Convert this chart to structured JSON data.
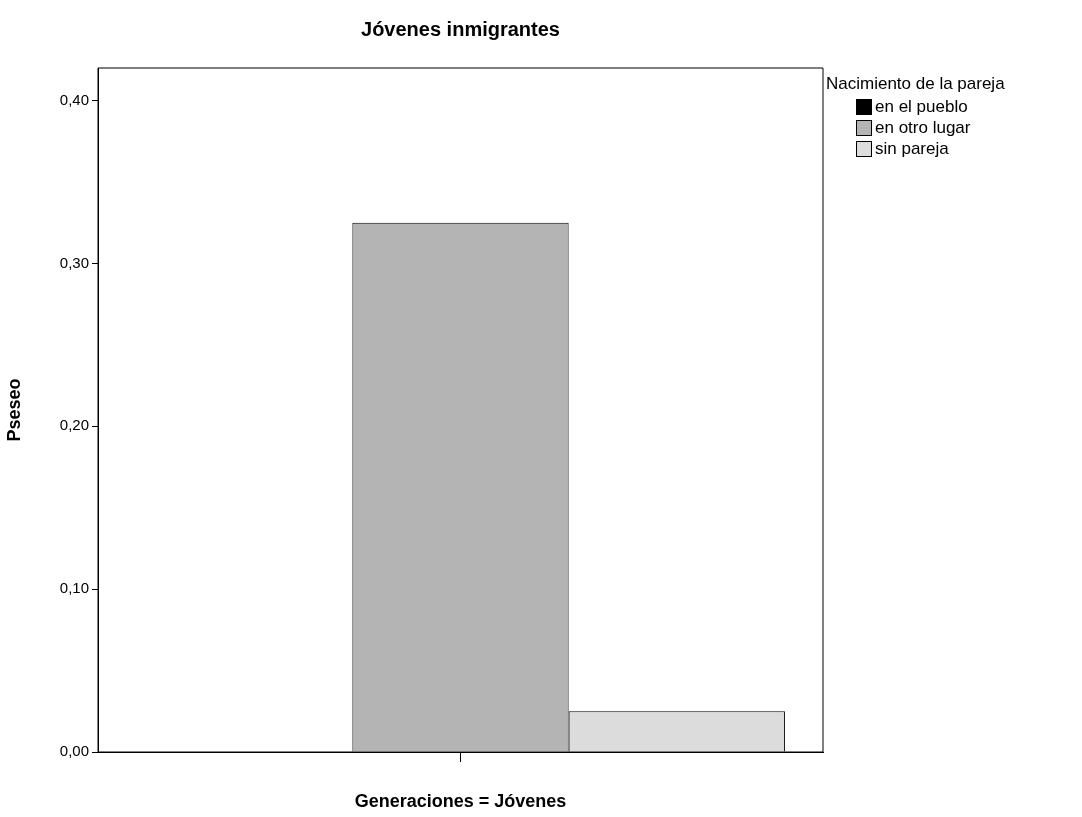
{
  "chart_data": {
    "type": "bar",
    "title": "Jóvenes inmigrantes",
    "xlabel": "Generaciones = Jóvenes",
    "ylabel": "Pseseo",
    "legend_title": "Nacimiento de la pareja",
    "legend": "top right",
    "grid": false,
    "categories": [
      null
    ],
    "series": [
      {
        "name": "en el pueblo",
        "color": "#000000",
        "values": [
          0
        ]
      },
      {
        "name": "en otro lugar",
        "color": "#b4b4b4",
        "values": [
          0.325
        ]
      },
      {
        "name": "sin pareja",
        "color": "#dcdcdc",
        "values": [
          0.025
        ]
      }
    ],
    "ylim": [
      0,
      0.42
    ],
    "yticks": [
      {
        "value": 0,
        "label": "0,00"
      },
      {
        "value": 0.1,
        "label": "0,10"
      },
      {
        "value": 0.2,
        "label": "0,20"
      },
      {
        "value": 0.3,
        "label": "0,30"
      },
      {
        "value": 0.4,
        "label": "0,40"
      }
    ]
  }
}
